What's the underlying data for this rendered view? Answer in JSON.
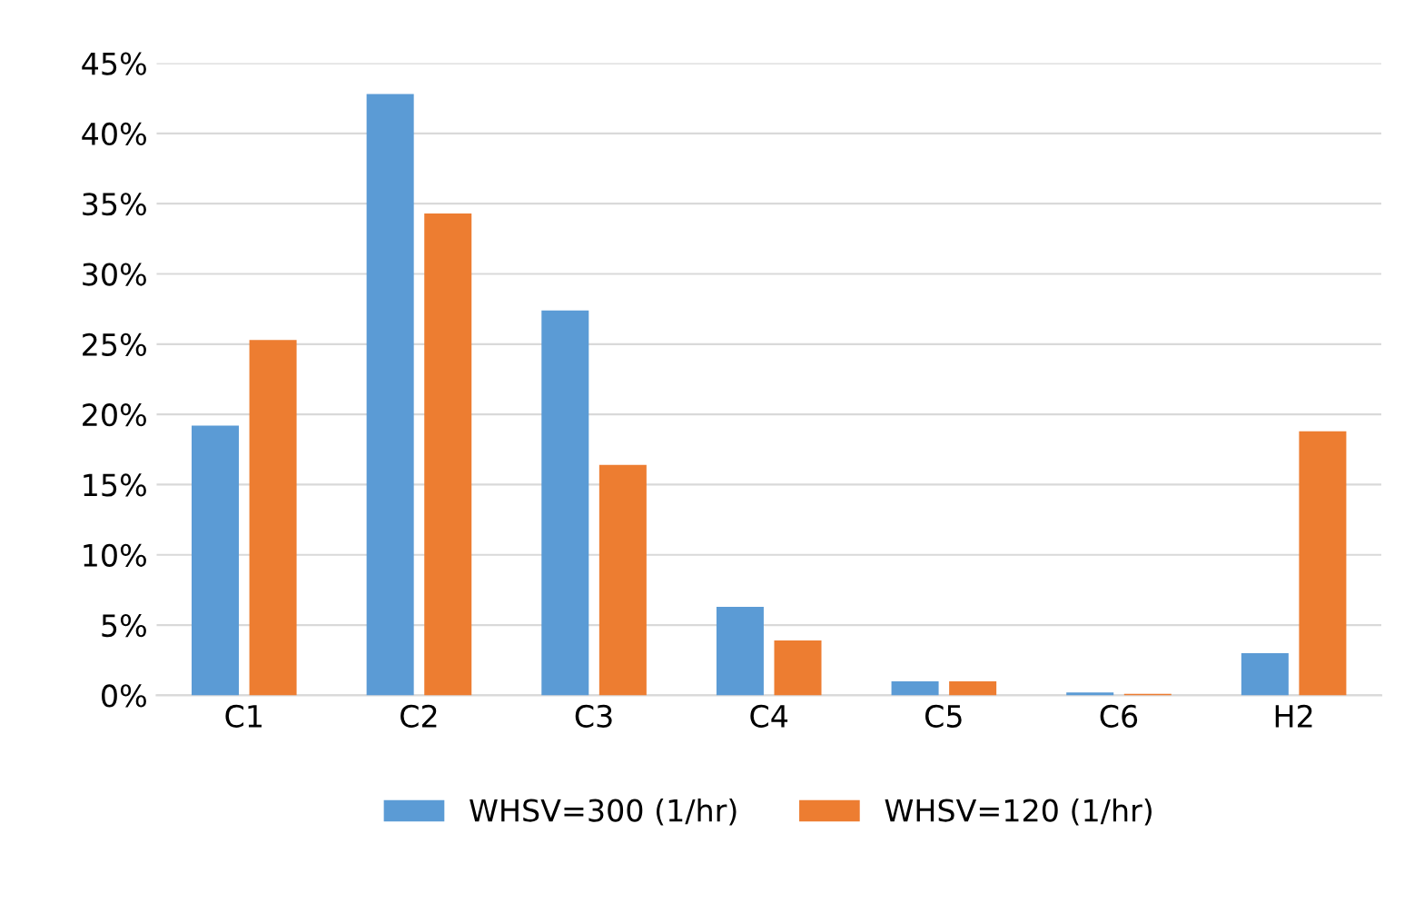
{
  "chart_data": {
    "type": "bar",
    "categories": [
      "C1",
      "C2",
      "C3",
      "C4",
      "C5",
      "C6",
      "H2"
    ],
    "series": [
      {
        "name": "WHSV=300 (1/hr)",
        "color": "#5b9bd5",
        "values": [
          19.2,
          42.8,
          27.4,
          6.3,
          1.0,
          0.2,
          3.0
        ]
      },
      {
        "name": "WHSV=120 (1/hr)",
        "color": "#ed7d31",
        "values": [
          25.3,
          34.3,
          16.4,
          3.9,
          1.0,
          0.1,
          18.8
        ]
      }
    ],
    "ylim": [
      0,
      45
    ],
    "yticks": [
      {
        "value": 0,
        "label": "0%"
      },
      {
        "value": 5,
        "label": "5%"
      },
      {
        "value": 10,
        "label": "10%"
      },
      {
        "value": 15,
        "label": "15%"
      },
      {
        "value": 20,
        "label": "20%"
      },
      {
        "value": 25,
        "label": "25%"
      },
      {
        "value": 30,
        "label": "30%"
      },
      {
        "value": 35,
        "label": "35%"
      },
      {
        "value": 40,
        "label": "40%"
      },
      {
        "value": 45,
        "label": "45%"
      }
    ],
    "grid": "y",
    "legend": "bottom"
  }
}
